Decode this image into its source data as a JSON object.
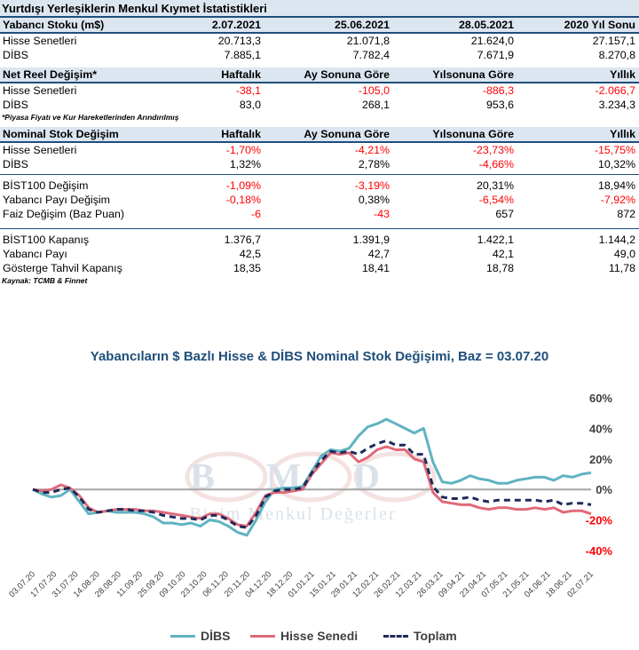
{
  "header": {
    "title": "Yurtdışı Yerleşiklerin Menkul Kıymet İstatistikleri"
  },
  "stock_table": {
    "columns": [
      "Yabancı Stoku (m$)",
      "2.07.2021",
      "25.06.2021",
      "28.05.2021",
      "2020 Yıl Sonu"
    ],
    "rows": [
      [
        "Hisse Senetleri",
        "20.713,3",
        "21.071,8",
        "21.624,0",
        "27.157,1"
      ],
      [
        "DİBS",
        "7.885,1",
        "7.782,4",
        "7.671,9",
        "8.270,8"
      ]
    ]
  },
  "real_change_table": {
    "columns": [
      "Net Reel Değişim*",
      "Haftalık",
      "Ay Sonuna Göre",
      "Yılsonuna Göre",
      "Yıllık"
    ],
    "rows": [
      [
        "Hisse Senetleri",
        "-38,1",
        "-105,0",
        "-886,3",
        "-2.066,7"
      ],
      [
        "DİBS",
        "83,0",
        "268,1",
        "953,6",
        "3.234,3"
      ]
    ],
    "note": "*Piyasa Fiyatı ve Kur Hareketlerinden Arındırılmış"
  },
  "nominal_change_table": {
    "columns": [
      "Nominal Stok Değişim",
      "Haftalık",
      "Ay Sonuna Göre",
      "Yılsonuna Göre",
      "Yıllık"
    ],
    "rows": [
      [
        "Hisse Senetleri",
        "-1,70%",
        "-4,21%",
        "-23,73%",
        "-15,75%"
      ],
      [
        "DİBS",
        "1,32%",
        "2,78%",
        "-4,66%",
        "10,32%"
      ]
    ]
  },
  "market_change_table": {
    "rows": [
      [
        "BİST100 Değişim",
        "-1,09%",
        "-3,19%",
        "20,31%",
        "18,94%"
      ],
      [
        "Yabancı Payı Değişim",
        "-0,18%",
        "0,38%",
        "-6,54%",
        "-7,92%"
      ],
      [
        "Faiz Değişim (Baz Puan)",
        "-6",
        "-43",
        "657",
        "872"
      ]
    ]
  },
  "close_table": {
    "rows": [
      [
        "BİST100 Kapanış",
        "1.376,7",
        "1.391,9",
        "1.422,1",
        "1.144,2"
      ],
      [
        "Yabancı Payı",
        "42,5",
        "42,7",
        "42,1",
        "49,0"
      ],
      [
        "Gösterge Tahvil Kapanış",
        "18,35",
        "18,41",
        "18,78",
        "11,78"
      ]
    ],
    "source": "Kaynak: TCMB & Finnet"
  },
  "watermark": {
    "logo": "BMD",
    "text": "Bizim Menkul Değerler"
  },
  "colors": {
    "dibs": "#5fb3c2",
    "hisse": "#e06a78",
    "toplam": "#1f2a5a",
    "header_bg": "#dce6f1",
    "header_line": "#1f4e79",
    "negative": "#ff0000"
  },
  "chart_data": {
    "type": "line",
    "title": "Yabancıların  $ Bazlı Hisse & DİBS Nominal Stok Değişimi, Baz = 03.07.20",
    "ylim": [
      -40,
      60
    ],
    "yticks": [
      "60%",
      "40%",
      "20%",
      "0%",
      "-20%",
      "-40%"
    ],
    "ytick_values": [
      60,
      40,
      20,
      0,
      -20,
      -40
    ],
    "x_labels": [
      "03.07.20",
      "17.07.20",
      "31.07.20",
      "14.08.20",
      "28.08.20",
      "11.09.20",
      "25.09.20",
      "09.10.20",
      "23.10.20",
      "06.11.20",
      "20.11.20",
      "04.12.20",
      "18.12.20",
      "01.01.21",
      "15.01.21",
      "29.01.21",
      "12.02.21",
      "26.02.21",
      "12.03.21",
      "26.03.21",
      "09.04.21",
      "23.04.21",
      "07.05.21",
      "21.05.21",
      "04.06.21",
      "18.06.21",
      "02.07.21"
    ],
    "series": [
      {
        "name": "DİBS",
        "values": [
          0,
          -3,
          -5,
          -4,
          0,
          -8,
          -16,
          -15,
          -14,
          -15,
          -15,
          -15,
          -16,
          -18,
          -22,
          -22,
          -23,
          -22,
          -24,
          -20,
          -21,
          -24,
          -28,
          -30,
          -20,
          -8,
          0,
          1,
          1,
          2,
          12,
          22,
          26,
          25,
          27,
          35,
          41,
          43,
          46,
          43,
          40,
          37,
          40,
          18,
          5,
          4,
          6,
          9,
          7,
          6,
          4,
          4,
          6,
          7,
          8,
          8,
          6,
          9,
          8,
          10,
          11
        ]
      },
      {
        "name": "Hisse Senedi",
        "values": [
          0,
          -1,
          0,
          3,
          1,
          -4,
          -12,
          -15,
          -14,
          -13,
          -13,
          -13,
          -14,
          -14,
          -15,
          -16,
          -17,
          -18,
          -19,
          -16,
          -16,
          -19,
          -23,
          -24,
          -15,
          -4,
          -2,
          -2,
          -1,
          0,
          10,
          17,
          24,
          23,
          24,
          18,
          21,
          26,
          28,
          26,
          26,
          20,
          18,
          -2,
          -8,
          -9,
          -10,
          -10,
          -12,
          -13,
          -12,
          -12,
          -13,
          -13,
          -12,
          -13,
          -12,
          -15,
          -14,
          -14,
          -16
        ]
      },
      {
        "name": "Toplam",
        "values": [
          0,
          -2,
          -2,
          0,
          1,
          -5,
          -13,
          -15,
          -14,
          -13,
          -13,
          -14,
          -14,
          -15,
          -17,
          -18,
          -19,
          -19,
          -20,
          -17,
          -17,
          -20,
          -24,
          -25,
          -17,
          -5,
          -1,
          0,
          0,
          1,
          11,
          19,
          25,
          24,
          25,
          23,
          27,
          30,
          32,
          29,
          29,
          23,
          23,
          2,
          -5,
          -6,
          -6,
          -5,
          -7,
          -8,
          -7,
          -7,
          -7,
          -7,
          -7,
          -8,
          -7,
          -10,
          -9,
          -9,
          -10
        ]
      }
    ]
  }
}
